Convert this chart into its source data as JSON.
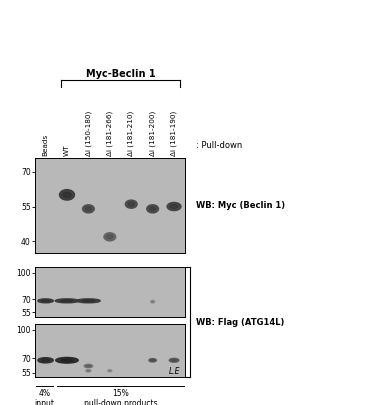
{
  "title_text": "Myc-Beclin 1",
  "pulldown_label": ": Pull-down",
  "wb_label1": "WB: Myc (Beclin 1)",
  "wb_label2": "WB: Flag (ATG14L)",
  "le_label": "L.E",
  "input_label": "4%\ninput",
  "pulldown_products_label": "15%\npull-down products",
  "col_labels": [
    "Beads",
    "WT",
    "Δi (150-180)",
    "Δi (181-266)",
    "Δi (181-210)",
    "Δi (181-200)",
    "Δi (181-190)"
  ],
  "bg_gray": 0.72,
  "panel1_yticks": [
    40,
    55,
    70
  ],
  "panel1_ylim": [
    35,
    76
  ],
  "panel2_yticks": [
    55,
    70,
    100
  ],
  "panel2_ylim": [
    50,
    106
  ],
  "panel3_yticks": [
    55,
    70,
    100
  ],
  "panel3_ylim": [
    50,
    106
  ],
  "panel1_bands": [
    {
      "col": 1,
      "y": 60,
      "xw": 0.7,
      "yw": 4.5,
      "dark": 0.22
    },
    {
      "col": 2,
      "y": 54,
      "xw": 0.55,
      "yw": 3.5,
      "dark": 0.3
    },
    {
      "col": 3,
      "y": 42,
      "xw": 0.55,
      "yw": 3.5,
      "dark": 0.38
    },
    {
      "col": 4,
      "y": 56,
      "xw": 0.55,
      "yw": 3.5,
      "dark": 0.28
    },
    {
      "col": 5,
      "y": 54,
      "xw": 0.55,
      "yw": 3.5,
      "dark": 0.28
    },
    {
      "col": 6,
      "y": 55,
      "xw": 0.65,
      "yw": 3.5,
      "dark": 0.25
    }
  ],
  "panel2_bands": [
    {
      "col": 0,
      "y": 68,
      "xw": 0.72,
      "yw": 4.5,
      "dark": 0.22
    },
    {
      "col": 1,
      "y": 68,
      "xw": 1.1,
      "yw": 4.5,
      "dark": 0.22
    },
    {
      "col": 2,
      "y": 68,
      "xw": 1.1,
      "yw": 4.5,
      "dark": 0.22
    },
    {
      "col": 5,
      "y": 67,
      "xw": 0.2,
      "yw": 3.0,
      "dark": 0.58
    }
  ],
  "panel3_bands": [
    {
      "col": 0,
      "y": 68,
      "xw": 0.72,
      "yw": 5.5,
      "dark": 0.18
    },
    {
      "col": 1,
      "y": 68,
      "xw": 1.05,
      "yw": 6.0,
      "dark": 0.15
    },
    {
      "col": 2,
      "y": 62,
      "xw": 0.4,
      "yw": 3.5,
      "dark": 0.45
    },
    {
      "col": 2,
      "y": 57,
      "xw": 0.25,
      "yw": 2.5,
      "dark": 0.55
    },
    {
      "col": 3,
      "y": 57,
      "xw": 0.2,
      "yw": 2.5,
      "dark": 0.6
    },
    {
      "col": 5,
      "y": 68,
      "xw": 0.35,
      "yw": 3.5,
      "dark": 0.35
    },
    {
      "col": 6,
      "y": 68,
      "xw": 0.45,
      "yw": 4.0,
      "dark": 0.35
    }
  ]
}
